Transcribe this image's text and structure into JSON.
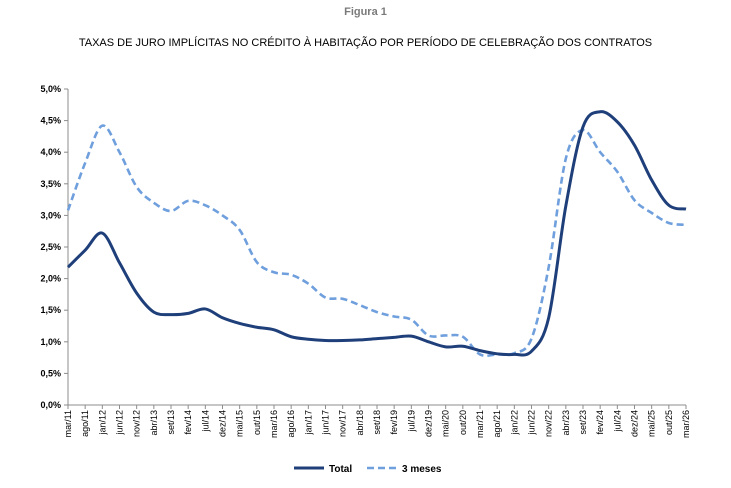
{
  "figure_label": "Figura 1",
  "chart_data": {
    "type": "line",
    "title": "TAXAS DE JURO IMPLÍCITAS NO CRÉDITO À HABITAÇÃO POR PERÍODO DE CELEBRAÇÃO DOS CONTRATOS",
    "xlabel": "",
    "ylabel": "",
    "ylim": [
      0,
      5
    ],
    "y_ticks": [
      "0,0%",
      "0,5%",
      "1,0%",
      "1,5%",
      "2,0%",
      "2,5%",
      "3,0%",
      "3,5%",
      "4,0%",
      "4,5%",
      "5,0%"
    ],
    "grid": false,
    "legend_position": "bottom",
    "x": [
      "mar/11",
      "ago/11",
      "jan/12",
      "jun/12",
      "nov/12",
      "abr/13",
      "set/13",
      "fev/14",
      "jul/14",
      "dez/14",
      "mai/15",
      "out/15",
      "mar/16",
      "ago/16",
      "jan/17",
      "jun/17",
      "nov/17",
      "abr/18",
      "set/18",
      "fev/19",
      "jul/19",
      "dez/19",
      "mai/20",
      "out/20",
      "mar/21",
      "ago/21",
      "jan/22",
      "jun/22",
      "nov/22",
      "abr/23",
      "set/23",
      "fev/24",
      "jul/24",
      "dez/24",
      "mai/25",
      "out/25",
      "mar/26"
    ],
    "series": [
      {
        "name": "Total",
        "color": "#1f3f7a",
        "style": "solid",
        "values": [
          2.18,
          2.45,
          2.72,
          2.25,
          1.77,
          1.47,
          1.43,
          1.45,
          1.52,
          1.38,
          1.29,
          1.23,
          1.19,
          1.08,
          1.04,
          1.02,
          1.02,
          1.03,
          1.05,
          1.07,
          1.09,
          1.0,
          0.92,
          0.93,
          0.86,
          0.81,
          0.8,
          0.85,
          1.38,
          3.15,
          4.4,
          4.64,
          4.48,
          4.11,
          3.56,
          3.16,
          3.1
        ]
      },
      {
        "name": "3 meses",
        "color": "#6f9fdc",
        "style": "dashed",
        "values": [
          3.08,
          3.83,
          4.42,
          4.0,
          3.45,
          3.2,
          3.07,
          3.23,
          3.16,
          3.0,
          2.77,
          2.26,
          2.1,
          2.06,
          1.92,
          1.7,
          1.68,
          1.58,
          1.47,
          1.4,
          1.35,
          1.1,
          1.1,
          1.08,
          0.8,
          0.8,
          0.82,
          1.05,
          2.18,
          3.9,
          4.35,
          4.0,
          3.69,
          3.24,
          3.04,
          2.88,
          2.85
        ]
      }
    ]
  }
}
